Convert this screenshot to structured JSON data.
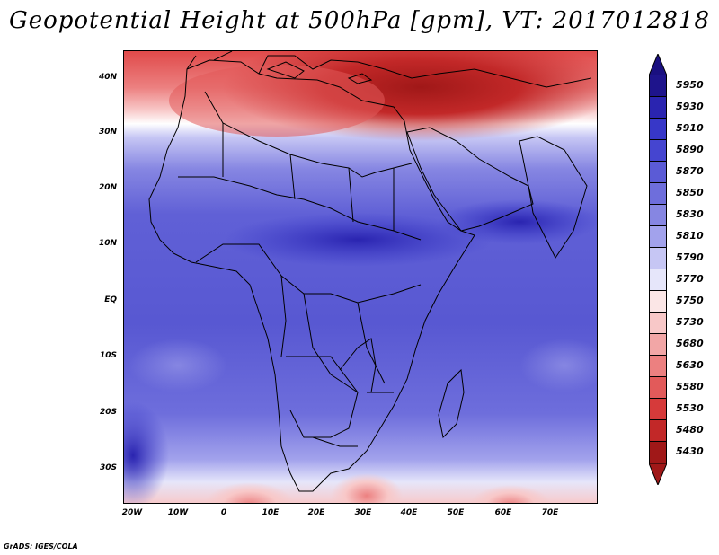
{
  "title": "Geopotential Height at 500hPa [gpm], VT: 2017012818",
  "credit": "GrADS: IGES/COLA",
  "map": {
    "lat_labels": [
      "40N",
      "30N",
      "20N",
      "10N",
      "EQ",
      "10S",
      "20S",
      "30S"
    ],
    "lon_labels": [
      "20W",
      "10W",
      "0",
      "10E",
      "20E",
      "30E",
      "40E",
      "50E",
      "60E",
      "70E"
    ],
    "region": "Africa and surroundings",
    "lon_range": [
      -22,
      80
    ],
    "lat_range": [
      -37,
      45
    ]
  },
  "legend": {
    "levels": [
      "5950",
      "5930",
      "5910",
      "5890",
      "5870",
      "5850",
      "5830",
      "5810",
      "5790",
      "5770",
      "5750",
      "5730",
      "5680",
      "5630",
      "5580",
      "5530",
      "5480",
      "5430"
    ],
    "colors": [
      "#1e148c",
      "#2a24b0",
      "#3737c8",
      "#4545d0",
      "#5b5bd6",
      "#6e6edc",
      "#8686e2",
      "#a2a2ec",
      "#c6c6f4",
      "#e6e6fa",
      "#fbe6e6",
      "#f8c8c8",
      "#f2a6a6",
      "#ec8080",
      "#e25a5a",
      "#d63a3a",
      "#c22828",
      "#a01818"
    ],
    "top_arrow_color": "#1a1080",
    "bottom_arrow_color": "#a01818"
  }
}
